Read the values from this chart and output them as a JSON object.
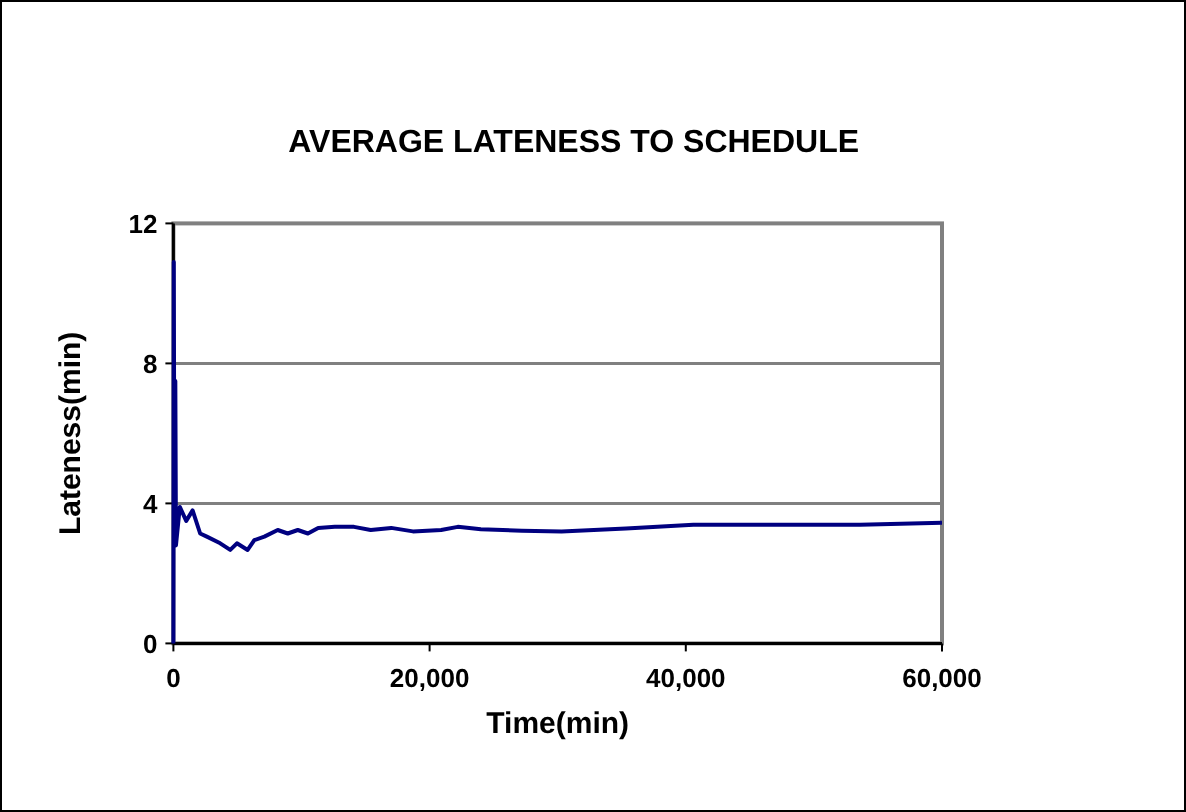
{
  "chart_data": {
    "type": "line",
    "title": "AVERAGE LATENESS TO SCHEDULE",
    "xlabel": "Time(min)",
    "ylabel": "Lateness(min)",
    "x": [
      0,
      30,
      80,
      150,
      200,
      500,
      1000,
      1500,
      2088,
      2610,
      3654,
      4437,
      4959,
      5794,
      6316,
      7100,
      8144,
      8927,
      9710,
      10500,
      11300,
      12600,
      14100,
      15400,
      17000,
      18700,
      20900,
      22200,
      24000,
      27200,
      30300,
      35330,
      40590,
      48400,
      53600,
      60000
    ],
    "series": [
      {
        "color": "#000080",
        "values": [
          0,
          10.9,
          3.0,
          7.5,
          2.8,
          3.9,
          3.5,
          3.8,
          3.14,
          3.05,
          2.86,
          2.67,
          2.86,
          2.67,
          2.95,
          3.05,
          3.24,
          3.14,
          3.24,
          3.14,
          3.3,
          3.33,
          3.33,
          3.24,
          3.3,
          3.2,
          3.24,
          3.33,
          3.26,
          3.22,
          3.2,
          3.28,
          3.39,
          3.39,
          3.39,
          3.45
        ]
      }
    ],
    "xlim": [
      0,
      60000
    ],
    "xticks": [
      {
        "value": 0,
        "label": "0"
      },
      {
        "value": 20000,
        "label": "20,000"
      },
      {
        "value": 40000,
        "label": "40,000"
      },
      {
        "value": 60000,
        "label": "60,000"
      }
    ],
    "ylim": [
      0,
      12
    ],
    "yticks": [
      0,
      4,
      8,
      12
    ],
    "grid": "y"
  }
}
